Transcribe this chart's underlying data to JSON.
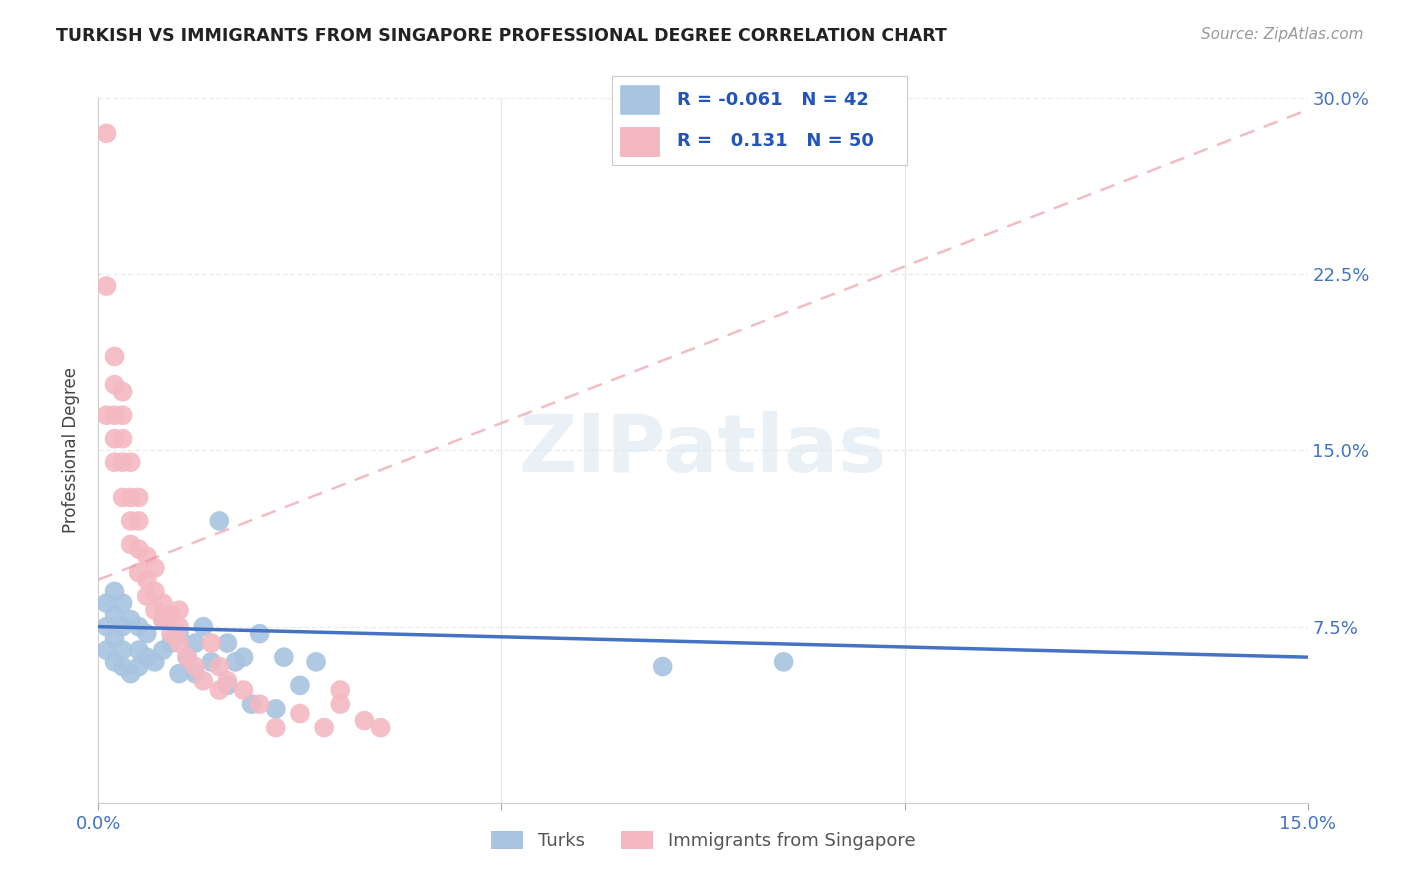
{
  "title": "TURKISH VS IMMIGRANTS FROM SINGAPORE PROFESSIONAL DEGREE CORRELATION CHART",
  "source": "Source: ZipAtlas.com",
  "ylabel": "Professional Degree",
  "xlim": [
    0.0,
    0.15
  ],
  "ylim": [
    0.0,
    0.3
  ],
  "xtick_positions": [
    0.0,
    0.05,
    0.1,
    0.15
  ],
  "xtick_labels": [
    "0.0%",
    "",
    "",
    "15.0%"
  ],
  "ytick_positions": [
    0.0,
    0.075,
    0.15,
    0.225,
    0.3
  ],
  "ytick_labels": [
    "",
    "7.5%",
    "15.0%",
    "22.5%",
    "30.0%"
  ],
  "background_color": "#ffffff",
  "watermark": "ZIPatlas",
  "turks_color": "#a8c4e0",
  "singapore_color": "#f4b8c1",
  "turks_line_color": "#4472c4",
  "singapore_line_color": "#e8909a",
  "legend_R_turks": "-0.061",
  "legend_N_turks": "42",
  "legend_R_singapore": "0.131",
  "legend_N_singapore": "50",
  "turks_x": [
    0.001,
    0.001,
    0.001,
    0.002,
    0.002,
    0.002,
    0.002,
    0.003,
    0.003,
    0.003,
    0.003,
    0.004,
    0.004,
    0.005,
    0.005,
    0.005,
    0.006,
    0.006,
    0.007,
    0.008,
    0.008,
    0.009,
    0.01,
    0.01,
    0.011,
    0.012,
    0.012,
    0.013,
    0.014,
    0.015,
    0.016,
    0.016,
    0.017,
    0.018,
    0.019,
    0.02,
    0.022,
    0.023,
    0.025,
    0.027,
    0.07,
    0.085
  ],
  "turks_y": [
    0.065,
    0.075,
    0.085,
    0.06,
    0.07,
    0.08,
    0.09,
    0.058,
    0.065,
    0.075,
    0.085,
    0.055,
    0.078,
    0.058,
    0.065,
    0.075,
    0.062,
    0.072,
    0.06,
    0.065,
    0.078,
    0.068,
    0.055,
    0.072,
    0.062,
    0.055,
    0.068,
    0.075,
    0.06,
    0.12,
    0.05,
    0.068,
    0.06,
    0.062,
    0.042,
    0.072,
    0.04,
    0.062,
    0.05,
    0.06,
    0.058,
    0.06
  ],
  "singapore_x": [
    0.001,
    0.001,
    0.001,
    0.002,
    0.002,
    0.002,
    0.002,
    0.002,
    0.003,
    0.003,
    0.003,
    0.003,
    0.003,
    0.004,
    0.004,
    0.004,
    0.004,
    0.005,
    0.005,
    0.005,
    0.005,
    0.006,
    0.006,
    0.006,
    0.007,
    0.007,
    0.007,
    0.008,
    0.008,
    0.009,
    0.009,
    0.01,
    0.01,
    0.01,
    0.011,
    0.012,
    0.013,
    0.014,
    0.015,
    0.015,
    0.016,
    0.018,
    0.02,
    0.022,
    0.025,
    0.028,
    0.03,
    0.03,
    0.033,
    0.035
  ],
  "singapore_y": [
    0.285,
    0.22,
    0.165,
    0.145,
    0.155,
    0.165,
    0.178,
    0.19,
    0.13,
    0.145,
    0.155,
    0.165,
    0.175,
    0.11,
    0.12,
    0.13,
    0.145,
    0.098,
    0.108,
    0.12,
    0.13,
    0.088,
    0.095,
    0.105,
    0.082,
    0.09,
    0.1,
    0.078,
    0.085,
    0.072,
    0.08,
    0.068,
    0.075,
    0.082,
    0.062,
    0.058,
    0.052,
    0.068,
    0.048,
    0.058,
    0.052,
    0.048,
    0.042,
    0.032,
    0.038,
    0.032,
    0.042,
    0.048,
    0.035,
    0.032
  ],
  "grid_color": "#e8e8e8",
  "axis_color": "#cccccc",
  "tick_label_color": "#4472c4"
}
